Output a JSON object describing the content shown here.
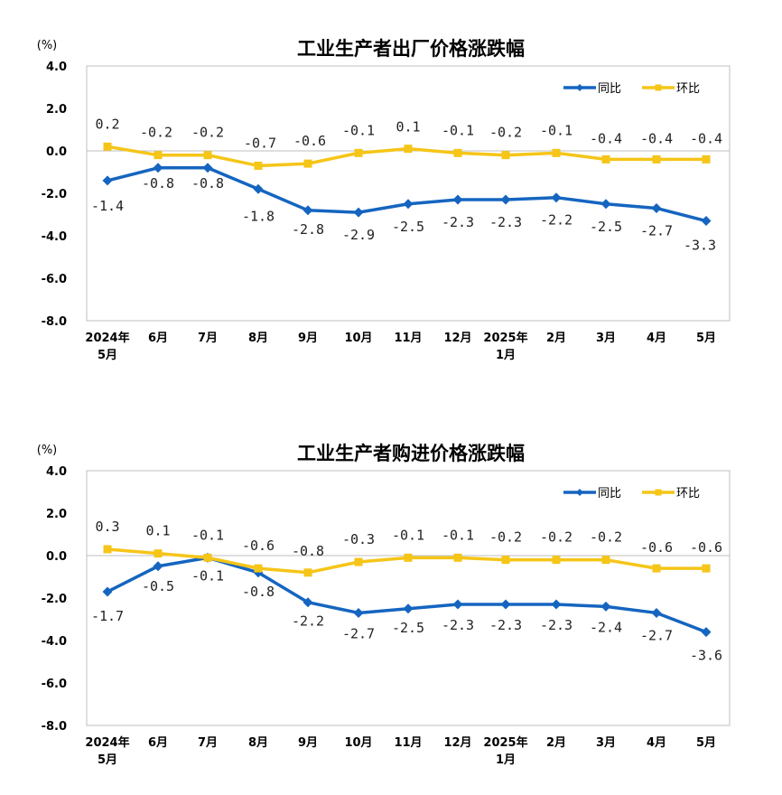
{
  "chart_data": [
    {
      "type": "line",
      "title": "工业生产者出厂价格涨跌幅",
      "unit": "(%)",
      "categories": [
        [
          "2024年",
          "5月"
        ],
        [
          "6月"
        ],
        [
          "7月"
        ],
        [
          "8月"
        ],
        [
          "9月"
        ],
        [
          "10月"
        ],
        [
          "11月"
        ],
        [
          "12月"
        ],
        [
          "2025年",
          "1月"
        ],
        [
          "2月"
        ],
        [
          "3月"
        ],
        [
          "4月"
        ],
        [
          "5月"
        ]
      ],
      "yticks": [
        "4.0",
        "2.0",
        "0.0",
        "-2.0",
        "-4.0",
        "-6.0",
        "-8.0"
      ],
      "ylim": [
        -8,
        4
      ],
      "legend_position": "top-right",
      "series": [
        {
          "name": "同比",
          "color": "#1565C0",
          "marker": "diamond",
          "values": [
            -1.4,
            -0.8,
            -0.8,
            -1.8,
            -2.8,
            -2.9,
            -2.5,
            -2.3,
            -2.3,
            -2.2,
            -2.5,
            -2.7,
            -3.3
          ],
          "labels": [
            "-1.4",
            "-0.8",
            "-0.8",
            "-1.8",
            "-2.8",
            "-2.9",
            "-2.5",
            "-2.3",
            "-2.3",
            "-2.2",
            "-2.5",
            "-2.7",
            "-3.3"
          ]
        },
        {
          "name": "环比",
          "color": "#F5C518",
          "marker": "square",
          "values": [
            0.2,
            -0.2,
            -0.2,
            -0.7,
            -0.6,
            -0.1,
            0.1,
            -0.1,
            -0.2,
            -0.1,
            -0.4,
            -0.4,
            -0.4
          ],
          "labels": [
            "0.2",
            "-0.2",
            "-0.2",
            "-0.7",
            "-0.6",
            "-0.1",
            "0.1",
            "-0.1",
            "-0.2",
            "-0.1",
            "-0.4",
            "-0.4",
            "-0.4"
          ]
        }
      ]
    },
    {
      "type": "line",
      "title": "工业生产者购进价格涨跌幅",
      "unit": "(%)",
      "categories": [
        [
          "2024年",
          "5月"
        ],
        [
          "6月"
        ],
        [
          "7月"
        ],
        [
          "8月"
        ],
        [
          "9月"
        ],
        [
          "10月"
        ],
        [
          "11月"
        ],
        [
          "12月"
        ],
        [
          "2025年",
          "1月"
        ],
        [
          "2月"
        ],
        [
          "3月"
        ],
        [
          "4月"
        ],
        [
          "5月"
        ]
      ],
      "yticks": [
        "4.0",
        "2.0",
        "0.0",
        "-2.0",
        "-4.0",
        "-6.0",
        "-8.0"
      ],
      "ylim": [
        -8,
        4
      ],
      "legend_position": "top-right",
      "series": [
        {
          "name": "同比",
          "color": "#1565C0",
          "marker": "diamond",
          "values": [
            -1.7,
            -0.5,
            -0.1,
            -0.8,
            -2.2,
            -2.7,
            -2.5,
            -2.3,
            -2.3,
            -2.3,
            -2.4,
            -2.7,
            -3.6
          ],
          "labels": [
            "-1.7",
            "-0.5",
            "-0.1",
            "-0.8",
            "-2.2",
            "-2.7",
            "-2.5",
            "-2.3",
            "-2.3",
            "-2.3",
            "-2.4",
            "-2.7",
            "-3.6"
          ]
        },
        {
          "name": "环比",
          "color": "#F5C518",
          "marker": "square",
          "values": [
            0.3,
            0.1,
            -0.1,
            -0.6,
            -0.8,
            -0.3,
            -0.1,
            -0.1,
            -0.2,
            -0.2,
            -0.2,
            -0.6,
            -0.6
          ],
          "labels": [
            "0.3",
            "0.1",
            "-0.1",
            "-0.6",
            "-0.8",
            "-0.3",
            "-0.1",
            "-0.1",
            "-0.2",
            "-0.2",
            "-0.2",
            "-0.6",
            "-0.6"
          ]
        }
      ]
    }
  ]
}
